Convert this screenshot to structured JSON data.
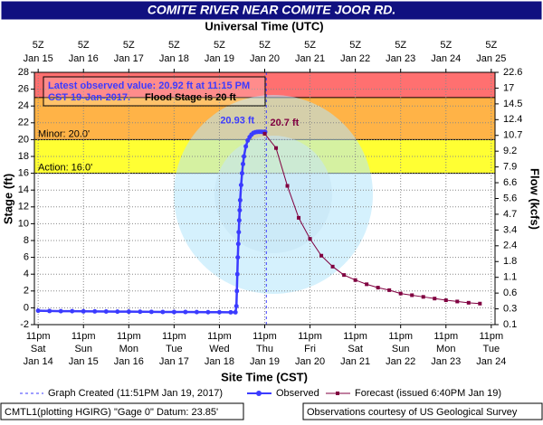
{
  "chart_data": {
    "type": "line",
    "title": "COMITE RIVER NEAR COMITE JOOR RD.",
    "x2label": "Universal Time (UTC)",
    "xlabel": "Site Time (CST)",
    "ylabel": "Stage (ft)",
    "y2label": "Flow (kcfs)",
    "xlim": [
      "Jan 14 21:00",
      "Jan 25 01:00"
    ],
    "ylim": [
      -2,
      28
    ],
    "yticks": [
      -2,
      0,
      2,
      4,
      6,
      8,
      10,
      12,
      14,
      16,
      18,
      20,
      22,
      24,
      26,
      28
    ],
    "y2ticks": [
      0.1,
      0.3,
      0.6,
      1.1,
      1.8,
      2.4,
      3.4,
      4.7,
      5.6,
      6.6,
      7.9,
      9.2,
      10.7,
      12.4,
      14.5,
      17.0,
      22.6
    ],
    "xticks": [
      {
        "value": "Jan 14 23:00",
        "label": [
          "11pm",
          "Sat",
          "Jan 14"
        ]
      },
      {
        "value": "Jan 15 23:00",
        "label": [
          "11pm",
          "Sun",
          "Jan 15"
        ]
      },
      {
        "value": "Jan 16 23:00",
        "label": [
          "11pm",
          "Mon",
          "Jan 16"
        ]
      },
      {
        "value": "Jan 17 23:00",
        "label": [
          "11pm",
          "Tue",
          "Jan 17"
        ]
      },
      {
        "value": "Jan 18 23:00",
        "label": [
          "11pm",
          "Wed",
          "Jan 18"
        ]
      },
      {
        "value": "Jan 19 23:00",
        "label": [
          "11pm",
          "Thu",
          "Jan 19"
        ]
      },
      {
        "value": "Jan 20 23:00",
        "label": [
          "11pm",
          "Fri",
          "Jan 20"
        ]
      },
      {
        "value": "Jan 21 23:00",
        "label": [
          "11pm",
          "Sat",
          "Jan 21"
        ]
      },
      {
        "value": "Jan 22 23:00",
        "label": [
          "11pm",
          "Sun",
          "Jan 22"
        ]
      },
      {
        "value": "Jan 23 23:00",
        "label": [
          "11pm",
          "Mon",
          "Jan 23"
        ]
      },
      {
        "value": "Jan 24 23:00",
        "label": [
          "11pm",
          "Tue",
          "Jan 24"
        ]
      }
    ],
    "x2ticks": [
      {
        "value": "Jan 14 23:00",
        "label": [
          "5Z",
          "Jan 15"
        ]
      },
      {
        "value": "Jan 15 23:00",
        "label": [
          "5Z",
          "Jan 16"
        ]
      },
      {
        "value": "Jan 16 23:00",
        "label": [
          "5Z",
          "Jan 17"
        ]
      },
      {
        "value": "Jan 17 23:00",
        "label": [
          "5Z",
          "Jan 18"
        ]
      },
      {
        "value": "Jan 18 23:00",
        "label": [
          "5Z",
          "Jan 19"
        ]
      },
      {
        "value": "Jan 19 23:00",
        "label": [
          "5Z",
          "Jan 20"
        ]
      },
      {
        "value": "Jan 20 23:00",
        "label": [
          "5Z",
          "Jan 21"
        ]
      },
      {
        "value": "Jan 21 23:00",
        "label": [
          "5Z",
          "Jan 22"
        ]
      },
      {
        "value": "Jan 22 23:00",
        "label": [
          "5Z",
          "Jan 23"
        ]
      },
      {
        "value": "Jan 23 23:00",
        "label": [
          "5Z",
          "Jan 24"
        ]
      },
      {
        "value": "Jan 24 23:00",
        "label": [
          "5Z",
          "Jan 25"
        ]
      }
    ],
    "grid": true,
    "flood_levels": [
      {
        "label": "Action: 16.0'",
        "value": 16,
        "color": "#ffff33"
      },
      {
        "label": "Minor: 20.0'",
        "value": 20,
        "color": "#ffb347"
      },
      {
        "value": 25,
        "color": "#ff7070"
      }
    ],
    "series": [
      {
        "name": "Observed",
        "color": "#3b3bff",
        "marker": "circle",
        "x": [
          "Jan 14 23:00",
          "Jan 15 05:00",
          "Jan 15 11:00",
          "Jan 15 17:00",
          "Jan 15 23:00",
          "Jan 16 05:00",
          "Jan 16 11:00",
          "Jan 16 17:00",
          "Jan 16 23:00",
          "Jan 17 05:00",
          "Jan 17 11:00",
          "Jan 17 17:00",
          "Jan 17 23:00",
          "Jan 18 05:00",
          "Jan 18 11:00",
          "Jan 18 17:00",
          "Jan 18 23:00",
          "Jan 19 05:00",
          "Jan 19 07:30",
          "Jan 19 08:00",
          "Jan 19 08:15",
          "Jan 19 08:30",
          "Jan 19 08:45",
          "Jan 19 09:00",
          "Jan 19 09:15",
          "Jan 19 09:30",
          "Jan 19 09:45",
          "Jan 19 10:00",
          "Jan 19 10:30",
          "Jan 19 11:00",
          "Jan 19 11:30",
          "Jan 19 12:00",
          "Jan 19 13:00",
          "Jan 19 14:00",
          "Jan 19 15:00",
          "Jan 19 16:00",
          "Jan 19 17:00",
          "Jan 19 18:00",
          "Jan 19 19:00",
          "Jan 19 20:00",
          "Jan 19 21:00",
          "Jan 19 22:00",
          "Jan 19 23:00",
          "Jan 19 23:15"
        ],
        "values": [
          -0.35,
          -0.38,
          -0.4,
          -0.4,
          -0.42,
          -0.43,
          -0.44,
          -0.45,
          -0.46,
          -0.47,
          -0.48,
          -0.49,
          -0.5,
          -0.5,
          -0.51,
          -0.52,
          -0.52,
          -0.53,
          -0.53,
          0.2,
          2.0,
          4.0,
          6.0,
          7.6,
          9.0,
          10.4,
          11.6,
          12.8,
          14.6,
          16.0,
          17.1,
          18.0,
          19.2,
          19.9,
          20.3,
          20.6,
          20.8,
          20.88,
          20.92,
          20.93,
          20.93,
          20.92,
          20.92,
          20.92
        ]
      },
      {
        "name": "Forecast (issued 6:40PM Jan 19)",
        "color": "#800040",
        "marker": "square",
        "x": [
          "Jan 19 23:00",
          "Jan 20 05:00",
          "Jan 20 11:00",
          "Jan 20 17:00",
          "Jan 20 23:00",
          "Jan 21 05:00",
          "Jan 21 11:00",
          "Jan 21 17:00",
          "Jan 21 23:00",
          "Jan 22 05:00",
          "Jan 22 11:00",
          "Jan 22 17:00",
          "Jan 22 23:00",
          "Jan 23 05:00",
          "Jan 23 11:00",
          "Jan 23 17:00",
          "Jan 23 23:00",
          "Jan 24 05:00",
          "Jan 24 11:00",
          "Jan 24 17:00"
        ],
        "values": [
          20.7,
          19.0,
          14.5,
          10.7,
          8.2,
          6.2,
          4.9,
          3.9,
          3.3,
          2.8,
          2.4,
          2.1,
          1.7,
          1.5,
          1.3,
          1.1,
          0.9,
          0.75,
          0.6,
          0.5
        ]
      }
    ],
    "annotations": [
      {
        "text": "20.93 ft",
        "x": "Jan 19 20:00",
        "y": 20.93,
        "color": "#3b3bff"
      },
      {
        "text": "20.7 ft",
        "x": "Jan 19 23:00",
        "y": 20.7,
        "color": "#800040"
      }
    ],
    "latest_box": {
      "lines": [
        "Latest observed value: 20.92 ft at 11:15 PM",
        "CST 19-Jan-2017."
      ],
      "flood_stage": "Flood Stage is 20 ft"
    },
    "created": {
      "name": "Graph Created (11:51PM Jan 19, 2017)",
      "x": "Jan 19 23:51"
    },
    "footer_left": "CMTL1(plotting HGIRG) \"Gage 0\" Datum: 23.85'",
    "footer_right": "Observations courtesy of US Geological Survey"
  }
}
